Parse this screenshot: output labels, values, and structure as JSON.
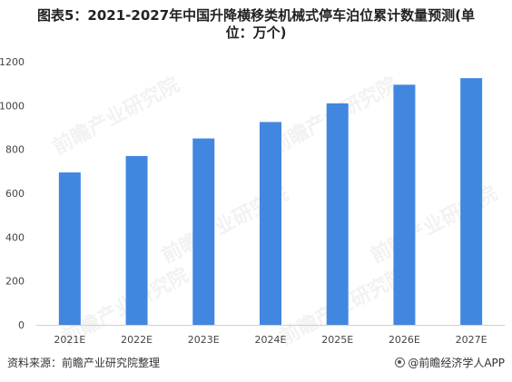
{
  "chart_data": {
    "type": "bar",
    "title": "图表5：2021-2027年中国升降横移类机械式停车泊位累计数量预测(单位：万个)",
    "title_lines": [
      "图表5：2021-2027年中国升降横移类机械式停车泊位累计数量预测(单",
      "位：万个)"
    ],
    "categories": [
      "2021E",
      "2022E",
      "2023E",
      "2024E",
      "2025E",
      "2026E",
      "2027E"
    ],
    "values": [
      695,
      770,
      850,
      925,
      1010,
      1095,
      1125
    ],
    "ylim": [
      0,
      1200
    ],
    "yticks": [
      "0",
      "200",
      "400",
      "600",
      "800",
      "1000",
      "1200"
    ],
    "xlabel": "",
    "ylabel": "",
    "grid": false,
    "bar_color": "#4187e0"
  },
  "footer": {
    "source": "资料来源：前瞻产业研究院整理",
    "brand": "@前瞻经济学人APP"
  },
  "watermark": {
    "text": "前瞻产业研究院"
  }
}
